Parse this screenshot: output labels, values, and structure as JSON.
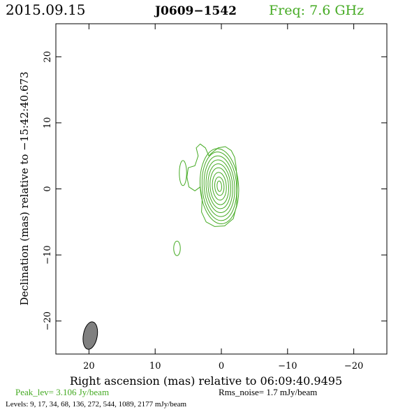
{
  "header": {
    "date": "2015.09.15",
    "source": "J0609−1542",
    "freq": "Freq: 7.6 GHz"
  },
  "footer": {
    "peak": "Peak_lev=  3.106 Jy/beam",
    "rms": "Rms_noise=  1.7 mJy/beam",
    "levels": "Levels:   9,   17,   34,   68,  136,  272,  544,  1089,  2177  mJy/beam"
  },
  "colors": {
    "contour": "#44aa22",
    "beam": "#808080",
    "axes": "#000000"
  },
  "chart_data": {
    "type": "contour",
    "xlabel": "Right ascension (mas) relative to 06:09:40.9495",
    "ylabel": "Declination (mas) relative to −15:42:40.673",
    "xlim": [
      25,
      -25
    ],
    "ylim": [
      -25,
      25
    ],
    "x_ticks": [
      20,
      10,
      0,
      -10,
      -20
    ],
    "y_ticks": [
      -20,
      -10,
      0,
      10,
      20
    ],
    "x_tick_labels": [
      "20",
      "10",
      "0",
      "−10",
      "−20"
    ],
    "y_tick_labels": [
      "−20",
      "−10",
      "0",
      "10",
      "20"
    ],
    "levels_mjy": [
      9,
      17,
      34,
      68,
      136,
      272,
      544,
      1089,
      2177
    ],
    "core": {
      "x": 0.3,
      "y": 0.4
    },
    "core_contours": [
      {
        "rx": 2.9,
        "ry": 5.7
      },
      {
        "rx": 2.6,
        "ry": 5.2
      },
      {
        "rx": 2.3,
        "ry": 4.6
      },
      {
        "rx": 2.0,
        "ry": 4.0
      },
      {
        "rx": 1.7,
        "ry": 3.4
      },
      {
        "rx": 1.4,
        "ry": 2.8
      },
      {
        "rx": 1.05,
        "ry": 2.1
      },
      {
        "rx": 0.7,
        "ry": 1.4
      },
      {
        "rx": 0.35,
        "ry": 0.8
      }
    ],
    "outer_contour": [
      [
        -2.2,
        3.5
      ],
      [
        -2.4,
        1.0
      ],
      [
        -2.3,
        -2.5
      ],
      [
        -1.8,
        -4.5
      ],
      [
        -0.5,
        -5.6
      ],
      [
        1.0,
        -5.7
      ],
      [
        2.3,
        -5.0
      ],
      [
        3.0,
        -3.5
      ],
      [
        2.9,
        -1.5
      ],
      [
        3.2,
        0.3
      ],
      [
        4.0,
        -0.3
      ],
      [
        4.9,
        0.3
      ],
      [
        5.2,
        1.8
      ],
      [
        5.0,
        3.2
      ],
      [
        4.0,
        3.5
      ],
      [
        3.5,
        5.0
      ],
      [
        3.8,
        6.2
      ],
      [
        3.2,
        6.8
      ],
      [
        2.4,
        6.2
      ],
      [
        1.9,
        5.0
      ],
      [
        1.5,
        5.4
      ],
      [
        0.5,
        6.2
      ],
      [
        -0.6,
        6.4
      ],
      [
        -1.5,
        5.8
      ],
      [
        -2.0,
        4.8
      ]
    ],
    "component_left": {
      "x": 5.8,
      "y": 2.4,
      "rx": 0.55,
      "ry": 1.9
    },
    "component_south": {
      "x": 6.7,
      "y": -9.0,
      "rx": 0.5,
      "ry": 1.1
    },
    "beam": {
      "x": 19.8,
      "y": -22.2,
      "major": 4.2,
      "minor": 1.4,
      "pa_deg": 10
    }
  }
}
